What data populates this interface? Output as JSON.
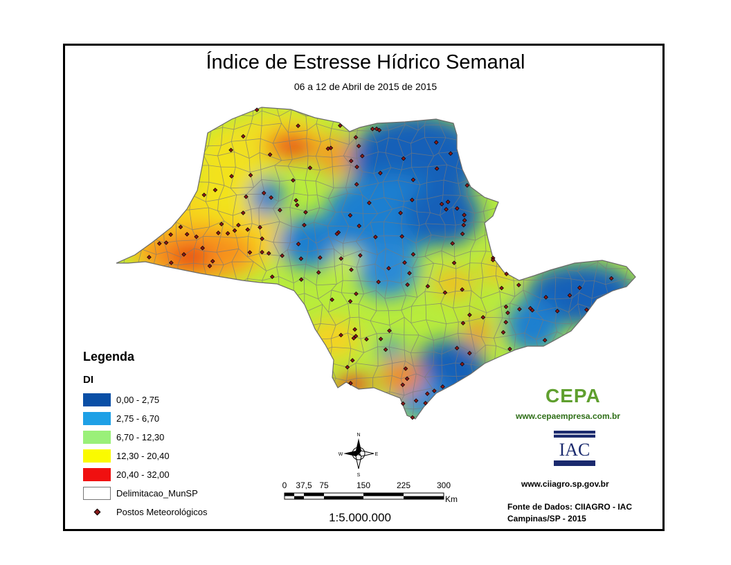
{
  "header": {
    "title": "Índice de Estresse Hídrico Semanal",
    "subtitle": "06 a 12 de Abril de 2015 de 2015"
  },
  "legend": {
    "title": "Legenda",
    "variable": "DI",
    "classes": [
      {
        "label": "0,00 - 2,75",
        "color": "#0a4fa6"
      },
      {
        "label": "2,75 - 6,70",
        "color": "#1ea0e6"
      },
      {
        "label": "6,70 - 12,30",
        "color": "#9af079"
      },
      {
        "label": "12,30 - 20,40",
        "color": "#fafa00"
      },
      {
        "label": "20,40 - 32,00",
        "color": "#f01010"
      }
    ],
    "boundary_label": "Delimitacao_MunSP",
    "stations_label": "Postos Meteorológicos"
  },
  "compass": {
    "n": "N",
    "s": "S",
    "e": "E",
    "w": "W"
  },
  "scale": {
    "ticks": [
      "0",
      "37,5",
      "75",
      "150",
      "225",
      "300"
    ],
    "unit": "Km",
    "ratio": "1:5.000.000"
  },
  "logos": {
    "cepa_text": "CEPA",
    "cepa_url": "www.cepaempresa.com.br",
    "iac_text": "IAC",
    "iac_url": "www.ciiagro.sp.gov.br"
  },
  "credits": {
    "line1": "Fonte de Dados: CIIAGRO - IAC",
    "line2": "Campinas/SP - 2015"
  }
}
